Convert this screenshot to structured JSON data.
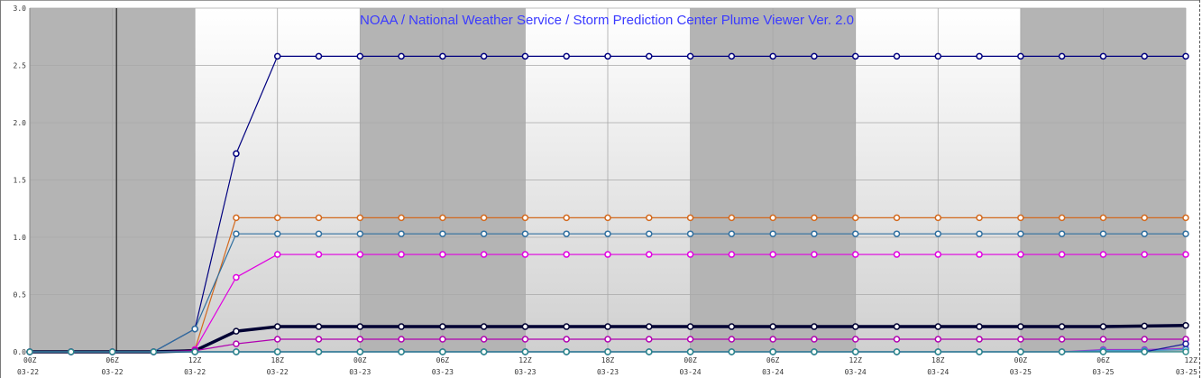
{
  "title": "NOAA / National Weather Service / Storm Prediction Center Plume Viewer Ver. 2.0",
  "colors": {
    "title": "#3b3bff",
    "night_band": "#b4b4b4",
    "grid": "#a8a8a8",
    "axis_text": "#333333"
  },
  "chart_data": {
    "type": "line",
    "title": "NOAA / National Weather Service / Storm Prediction Center Plume Viewer Ver. 2.0",
    "xlabel": "",
    "ylabel": "",
    "ylim": [
      0,
      3.0
    ],
    "yticks": [
      "0.0",
      "0.5",
      "1.0",
      "1.5",
      "2.0",
      "2.5",
      "3.0"
    ],
    "xticks": [
      {
        "hour": "00Z",
        "date": "03-22"
      },
      {
        "hour": "06Z",
        "date": "03-22"
      },
      {
        "hour": "12Z",
        "date": "03-22"
      },
      {
        "hour": "18Z",
        "date": "03-22"
      },
      {
        "hour": "00Z",
        "date": "03-23"
      },
      {
        "hour": "06Z",
        "date": "03-23"
      },
      {
        "hour": "12Z",
        "date": "03-23"
      },
      {
        "hour": "18Z",
        "date": "03-23"
      },
      {
        "hour": "00Z",
        "date": "03-24"
      },
      {
        "hour": "06Z",
        "date": "03-24"
      },
      {
        "hour": "12Z",
        "date": "03-24"
      },
      {
        "hour": "18Z",
        "date": "03-24"
      },
      {
        "hour": "00Z",
        "date": "03-25"
      },
      {
        "hour": "06Z",
        "date": "03-25"
      },
      {
        "hour": "12Z",
        "date": "03-25"
      }
    ],
    "x_hours": [
      0,
      3,
      6,
      9,
      12,
      15,
      18,
      21,
      24,
      27,
      30,
      33,
      36,
      39,
      42,
      45,
      48,
      51,
      54,
      57,
      60,
      63,
      66,
      69,
      72,
      75,
      78,
      81,
      84
    ],
    "night_bands_hours": [
      [
        0,
        12
      ],
      [
        24,
        36
      ],
      [
        48,
        60
      ],
      [
        72,
        84
      ]
    ],
    "current_time_hour": 6.3,
    "grid": true,
    "series": [
      {
        "color": "#00007f",
        "width": 1.2,
        "values": [
          0,
          0,
          0,
          0,
          0.2,
          1.73,
          2.58,
          2.58,
          2.58,
          2.58,
          2.58,
          2.58,
          2.58,
          2.58,
          2.58,
          2.58,
          2.58,
          2.58,
          2.58,
          2.58,
          2.58,
          2.58,
          2.58,
          2.58,
          2.58,
          2.58,
          2.58,
          2.58,
          2.58
        ]
      },
      {
        "color": "#d2691e",
        "width": 1.2,
        "values": [
          0,
          0,
          0,
          0,
          0.02,
          1.17,
          1.17,
          1.17,
          1.17,
          1.17,
          1.17,
          1.17,
          1.17,
          1.17,
          1.17,
          1.17,
          1.17,
          1.17,
          1.17,
          1.17,
          1.17,
          1.17,
          1.17,
          1.17,
          1.17,
          1.17,
          1.17,
          1.17,
          1.17
        ]
      },
      {
        "color": "#2f6f9f",
        "width": 1.2,
        "values": [
          0,
          0,
          0,
          0,
          0.2,
          1.03,
          1.03,
          1.03,
          1.03,
          1.03,
          1.03,
          1.03,
          1.03,
          1.03,
          1.03,
          1.03,
          1.03,
          1.03,
          1.03,
          1.03,
          1.03,
          1.03,
          1.03,
          1.03,
          1.03,
          1.03,
          1.03,
          1.03,
          1.03
        ]
      },
      {
        "color": "#e000e0",
        "width": 1.2,
        "values": [
          0,
          0,
          0,
          0,
          0.02,
          0.65,
          0.85,
          0.85,
          0.85,
          0.85,
          0.85,
          0.85,
          0.85,
          0.85,
          0.85,
          0.85,
          0.85,
          0.85,
          0.85,
          0.85,
          0.85,
          0.85,
          0.85,
          0.85,
          0.85,
          0.85,
          0.85,
          0.85,
          0.85
        ]
      },
      {
        "color": "#000033",
        "width": 3.5,
        "values": [
          0,
          0,
          0,
          0,
          0.01,
          0.18,
          0.22,
          0.22,
          0.22,
          0.22,
          0.22,
          0.22,
          0.22,
          0.22,
          0.22,
          0.22,
          0.22,
          0.22,
          0.22,
          0.22,
          0.22,
          0.22,
          0.22,
          0.22,
          0.22,
          0.22,
          0.22,
          0.225,
          0.23
        ]
      },
      {
        "color": "#b000b0",
        "width": 1.2,
        "values": [
          0,
          0,
          0,
          0,
          0.01,
          0.07,
          0.11,
          0.11,
          0.11,
          0.11,
          0.11,
          0.11,
          0.11,
          0.11,
          0.11,
          0.11,
          0.11,
          0.11,
          0.11,
          0.11,
          0.11,
          0.11,
          0.11,
          0.11,
          0.11,
          0.11,
          0.11,
          0.11,
          0.11
        ]
      },
      {
        "color": "#9933cc",
        "width": 1.2,
        "values": [
          0,
          0,
          0,
          0,
          0,
          0,
          0,
          0,
          0,
          0,
          0,
          0,
          0,
          0,
          0,
          0,
          0,
          0,
          0,
          0,
          0,
          0,
          0,
          0,
          0,
          0,
          0.02,
          0.02,
          0.03
        ]
      },
      {
        "color": "#3399cc",
        "width": 1.2,
        "values": [
          0,
          0,
          0,
          0,
          0,
          0,
          0,
          0,
          0,
          0,
          0,
          0,
          0,
          0,
          0,
          0,
          0,
          0,
          0,
          0,
          0,
          0,
          0,
          0,
          0,
          0,
          0.01,
          0.01,
          0.02
        ]
      },
      {
        "color": "#1a1a99",
        "width": 1.2,
        "values": [
          0,
          0,
          0,
          0,
          0,
          0,
          0,
          0,
          0,
          0,
          0,
          0,
          0,
          0,
          0,
          0,
          0,
          0,
          0,
          0,
          0,
          0,
          0,
          0,
          0,
          0,
          0,
          0,
          0.07
        ]
      },
      {
        "color": "#2e8b8b",
        "width": 1.2,
        "values": [
          0,
          0,
          0,
          0,
          0,
          0,
          0,
          0,
          0,
          0,
          0,
          0,
          0,
          0,
          0,
          0,
          0,
          0,
          0,
          0,
          0,
          0,
          0,
          0,
          0,
          0,
          0,
          0,
          0
        ]
      }
    ]
  }
}
